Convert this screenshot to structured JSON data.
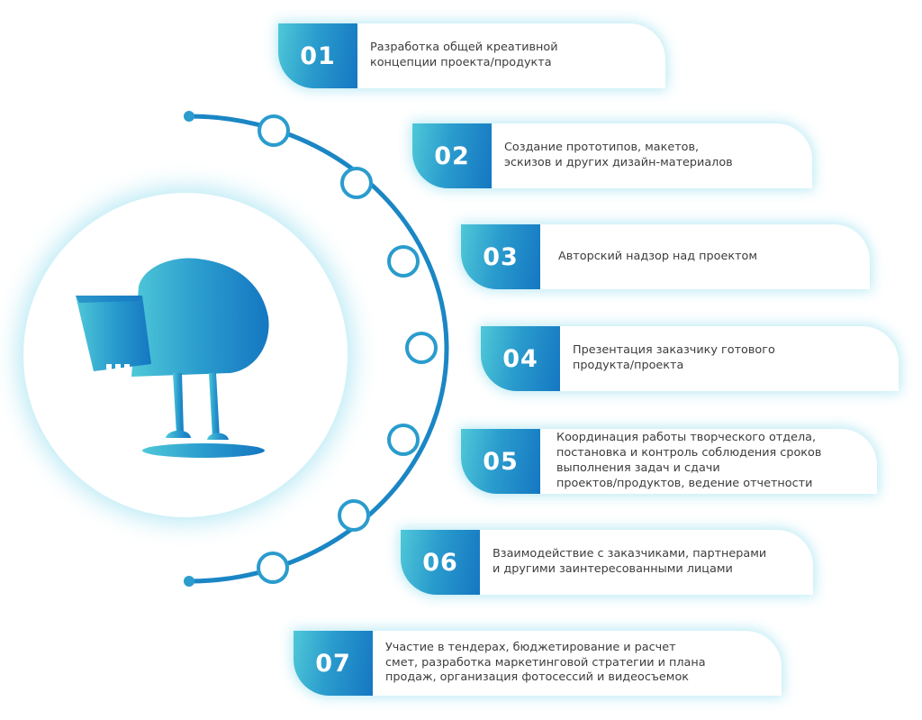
{
  "colors": {
    "accent_start": "#4fc8d8",
    "accent_end": "#1577c2",
    "glow": "#61cee6",
    "text": "#3c3c3c"
  },
  "center_icon": "director-chair-icon",
  "steps": [
    {
      "num": "01",
      "text": "Разработка общей креативной\nконцепции проекта/продукта"
    },
    {
      "num": "02",
      "text": "Создание прототипов, макетов,\nэскизов и других дизайн-материалов"
    },
    {
      "num": "03",
      "text": "Авторский надзор над проектом"
    },
    {
      "num": "04",
      "text": "Презентация заказчику готового\nпродукта/проекта"
    },
    {
      "num": "05",
      "text": "Координация работы творческого отдела,\nпостановка и контроль соблюдения сроков\nвыполнения задач и сдачи\nпроектов/продуктов, ведение отчетности"
    },
    {
      "num": "06",
      "text": "Взаимодействие с заказчиками, партнерами\nи другими заинтересованными лицами"
    },
    {
      "num": "07",
      "text": "Участие в тендерах, бюджетирование и расчет\nсмет, разработка маркетинговой стратегии и плана\nпродаж, организация фотосессий и видеосъемок"
    }
  ]
}
